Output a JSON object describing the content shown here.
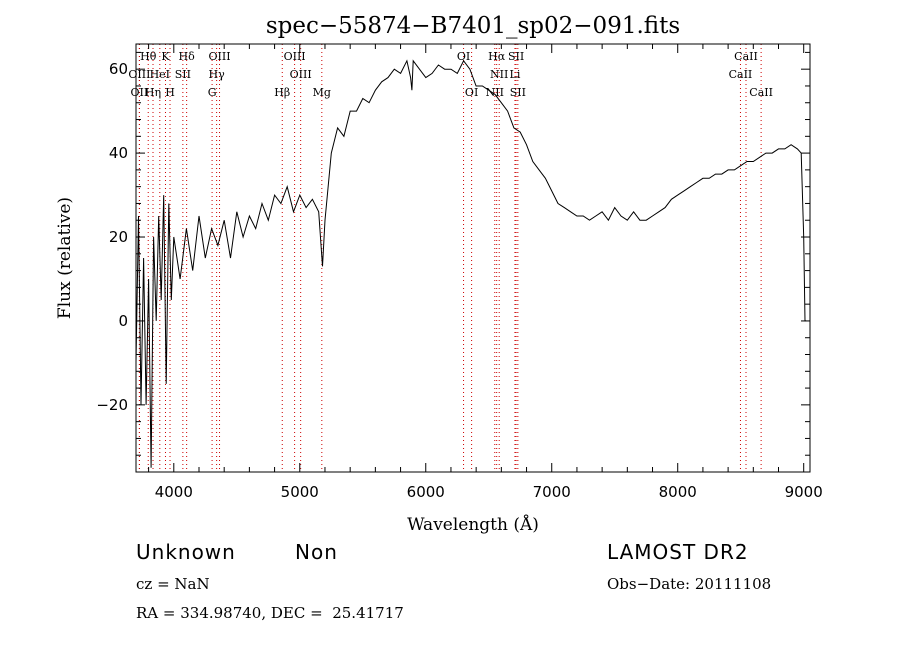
{
  "chart_data": {
    "type": "line",
    "title": "spec−55874−B7401_sp02−091.fits",
    "xlabel": "Wavelength (Å)",
    "ylabel": "Flux (relative)",
    "xlim": [
      3700,
      9050
    ],
    "ylim": [
      -36,
      66
    ],
    "xticks": [
      4000,
      5000,
      6000,
      7000,
      8000,
      9000
    ],
    "yticks": [
      -20,
      0,
      20,
      40,
      60
    ],
    "ytick_labels": [
      "−20",
      "0",
      "20",
      "40",
      "60"
    ],
    "grid": false,
    "line_color": "#000000",
    "marker_color": "#cc0000",
    "series": [
      {
        "x": [
          3700,
          3720,
          3740,
          3760,
          3780,
          3800,
          3820,
          3840,
          3860,
          3880,
          3900,
          3920,
          3940,
          3960,
          3980,
          4000,
          4050,
          4100,
          4150,
          4200,
          4250,
          4300,
          4350,
          4400,
          4450,
          4500,
          4550,
          4600,
          4650,
          4700,
          4750,
          4800,
          4850,
          4900,
          4950,
          5000,
          5050,
          5100,
          5150,
          5180,
          5200,
          5250,
          5300,
          5350,
          5400,
          5450,
          5500,
          5550,
          5600,
          5650,
          5700,
          5750,
          5800,
          5850,
          5880,
          5890,
          5900,
          5950,
          6000,
          6050,
          6100,
          6150,
          6200,
          6250,
          6300,
          6350,
          6400,
          6450,
          6500,
          6550,
          6600,
          6650,
          6700,
          6750,
          6800,
          6850,
          6900,
          6950,
          7000,
          7050,
          7100,
          7150,
          7200,
          7250,
          7300,
          7350,
          7400,
          7450,
          7500,
          7550,
          7600,
          7650,
          7700,
          7750,
          7800,
          7850,
          7900,
          7950,
          8000,
          8050,
          8100,
          8150,
          8200,
          8250,
          8300,
          8350,
          8400,
          8450,
          8500,
          8550,
          8600,
          8650,
          8700,
          8750,
          8800,
          8850,
          8900,
          8950,
          8980,
          9000,
          9010,
          9020
        ],
        "y": [
          -10,
          25,
          -20,
          15,
          -20,
          10,
          -35,
          20,
          0,
          25,
          5,
          30,
          -15,
          28,
          5,
          20,
          10,
          22,
          12,
          25,
          15,
          22,
          18,
          24,
          15,
          26,
          20,
          25,
          22,
          28,
          24,
          30,
          28,
          32,
          26,
          30,
          27,
          29,
          26,
          13,
          24,
          40,
          46,
          44,
          50,
          50,
          53,
          52,
          55,
          57,
          58,
          60,
          59,
          62,
          58,
          55,
          62,
          60,
          58,
          59,
          61,
          60,
          60,
          59,
          62,
          60,
          56,
          56,
          55,
          54,
          52,
          50,
          46,
          45,
          42,
          38,
          36,
          34,
          31,
          28,
          27,
          26,
          25,
          25,
          24,
          25,
          26,
          24,
          27,
          25,
          24,
          26,
          24,
          24,
          25,
          26,
          27,
          29,
          30,
          31,
          32,
          33,
          34,
          34,
          35,
          35,
          36,
          36,
          37,
          38,
          38,
          39,
          40,
          40,
          41,
          41,
          42,
          41,
          40,
          20,
          0,
          0
        ]
      }
    ],
    "lines": [
      {
        "name": "Hθ",
        "wl": 3797,
        "row": 0
      },
      {
        "name": "K",
        "wl": 3934,
        "row": 0
      },
      {
        "name": "Hδ",
        "wl": 4102,
        "row": 0
      },
      {
        "name": "OIII",
        "wl": 4363,
        "row": 0
      },
      {
        "name": "OIII",
        "wl": 4959,
        "row": 0
      },
      {
        "name": "OI",
        "wl": 6300,
        "row": 0
      },
      {
        "name": "Hα",
        "wl": 6563,
        "row": 0
      },
      {
        "name": "SII",
        "wl": 6717,
        "row": 0
      },
      {
        "name": "CaII",
        "wl": 8542,
        "row": 0
      },
      {
        "name": "OIII",
        "wl": 3727,
        "row": 1
      },
      {
        "name": "HeI",
        "wl": 3889,
        "row": 1
      },
      {
        "name": "SII",
        "wl": 4072,
        "row": 1
      },
      {
        "name": "Hγ",
        "wl": 4340,
        "row": 1
      },
      {
        "name": "OIII",
        "wl": 5007,
        "row": 1
      },
      {
        "name": "NII",
        "wl": 6583,
        "row": 1
      },
      {
        "name": "Li",
        "wl": 6708,
        "row": 1
      },
      {
        "name": "CaII",
        "wl": 8498,
        "row": 1
      },
      {
        "name": "OII",
        "wl": 3727,
        "row": 2
      },
      {
        "name": "Hη",
        "wl": 3835,
        "row": 2
      },
      {
        "name": "H",
        "wl": 3970,
        "row": 2
      },
      {
        "name": "G",
        "wl": 4304,
        "row": 2
      },
      {
        "name": "Hβ",
        "wl": 4861,
        "row": 2
      },
      {
        "name": "Mg",
        "wl": 5175,
        "row": 2
      },
      {
        "name": "OI",
        "wl": 6364,
        "row": 2
      },
      {
        "name": "NII",
        "wl": 6548,
        "row": 2
      },
      {
        "name": "SII",
        "wl": 6731,
        "row": 2
      },
      {
        "name": "CaII",
        "wl": 8662,
        "row": 2
      }
    ]
  },
  "info": {
    "class": "Unknown",
    "subclass": "Non",
    "survey": "LAMOST DR2",
    "cz": "cz = NaN",
    "obs_date": "Obs−Date: 20111108",
    "coords": "RA = 334.98740, DEC =  25.41717"
  }
}
